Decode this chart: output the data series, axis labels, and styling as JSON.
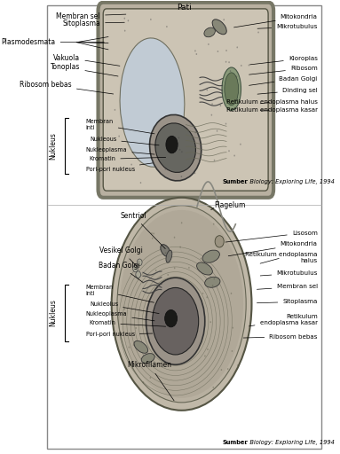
{
  "fig_width": 3.83,
  "fig_height": 5.12,
  "dpi": 100,
  "bg_color": "#ffffff",
  "border_color": "#888888",
  "text_color": "#000000",
  "font_size_label": 5.5,
  "font_size_source": 4.8,
  "font_size_nucleus": 5.5,
  "font_size_title": 6.5,
  "cell1_title": "Pati",
  "cell1_source_bold": "Sumber",
  "cell1_source_italic": ": Biology: Exploring Life, 1994",
  "cell2_source_bold": "Sumber",
  "cell2_source_italic": ": Biology: Exploring Life, 1994"
}
